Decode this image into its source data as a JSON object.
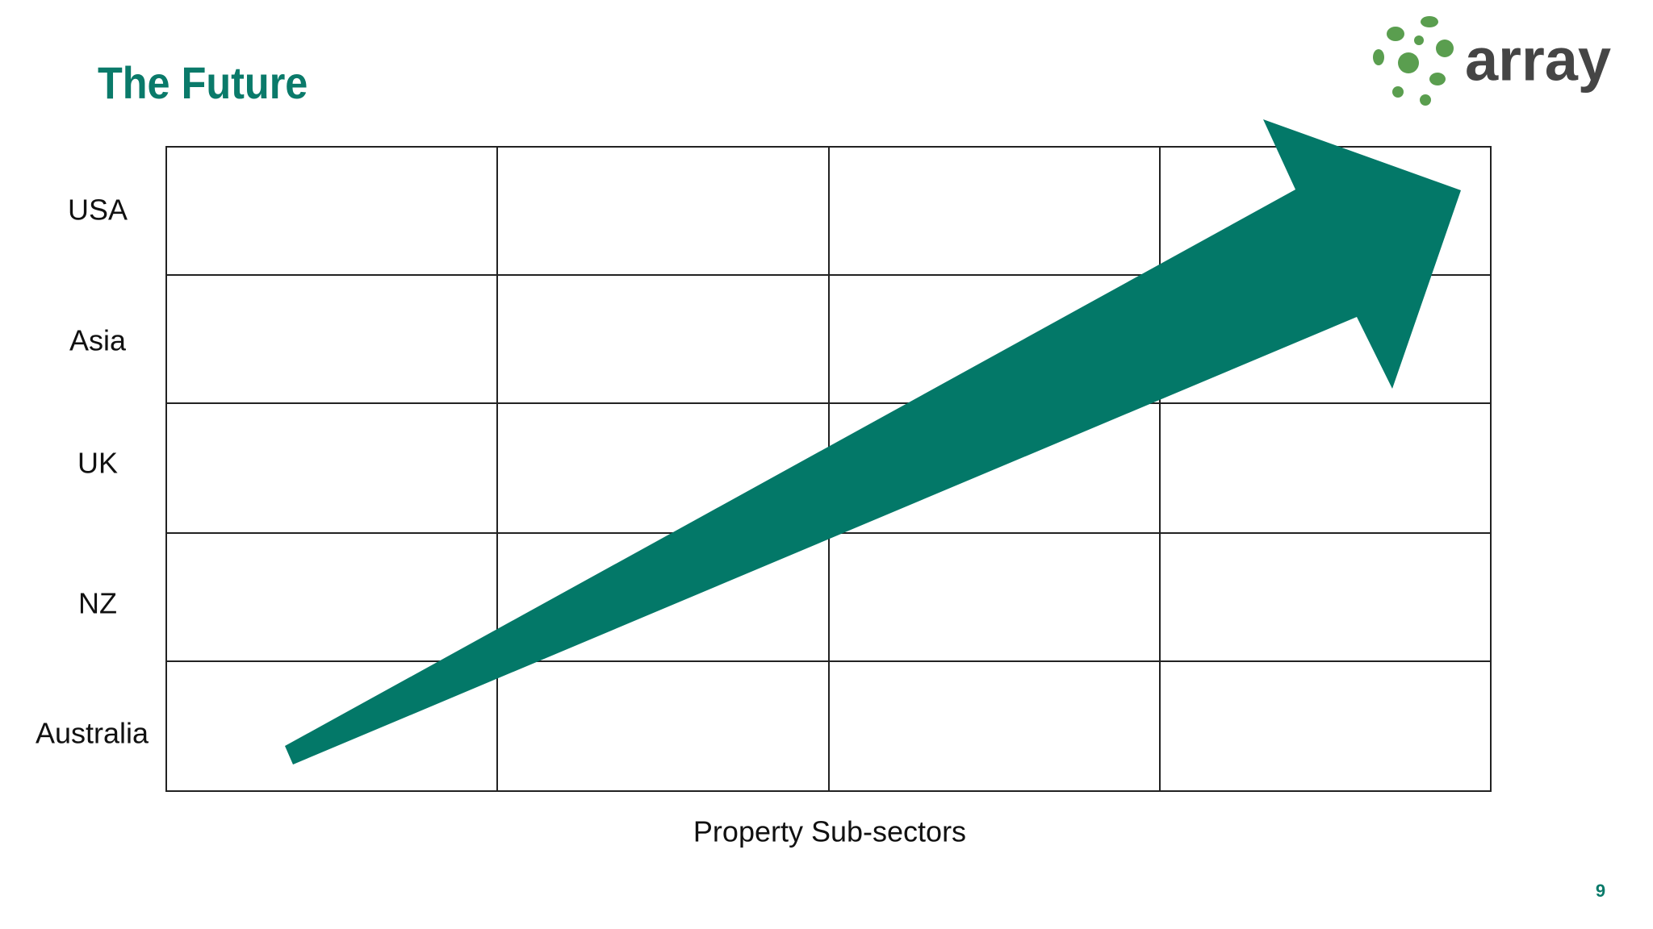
{
  "header": {
    "title": "The Future",
    "logo": "array"
  },
  "grid": {
    "rows": [
      "USA",
      "Asia",
      "UK",
      "NZ",
      "Australia"
    ],
    "x_label": "Property Sub-sectors"
  },
  "page_number": "9"
}
